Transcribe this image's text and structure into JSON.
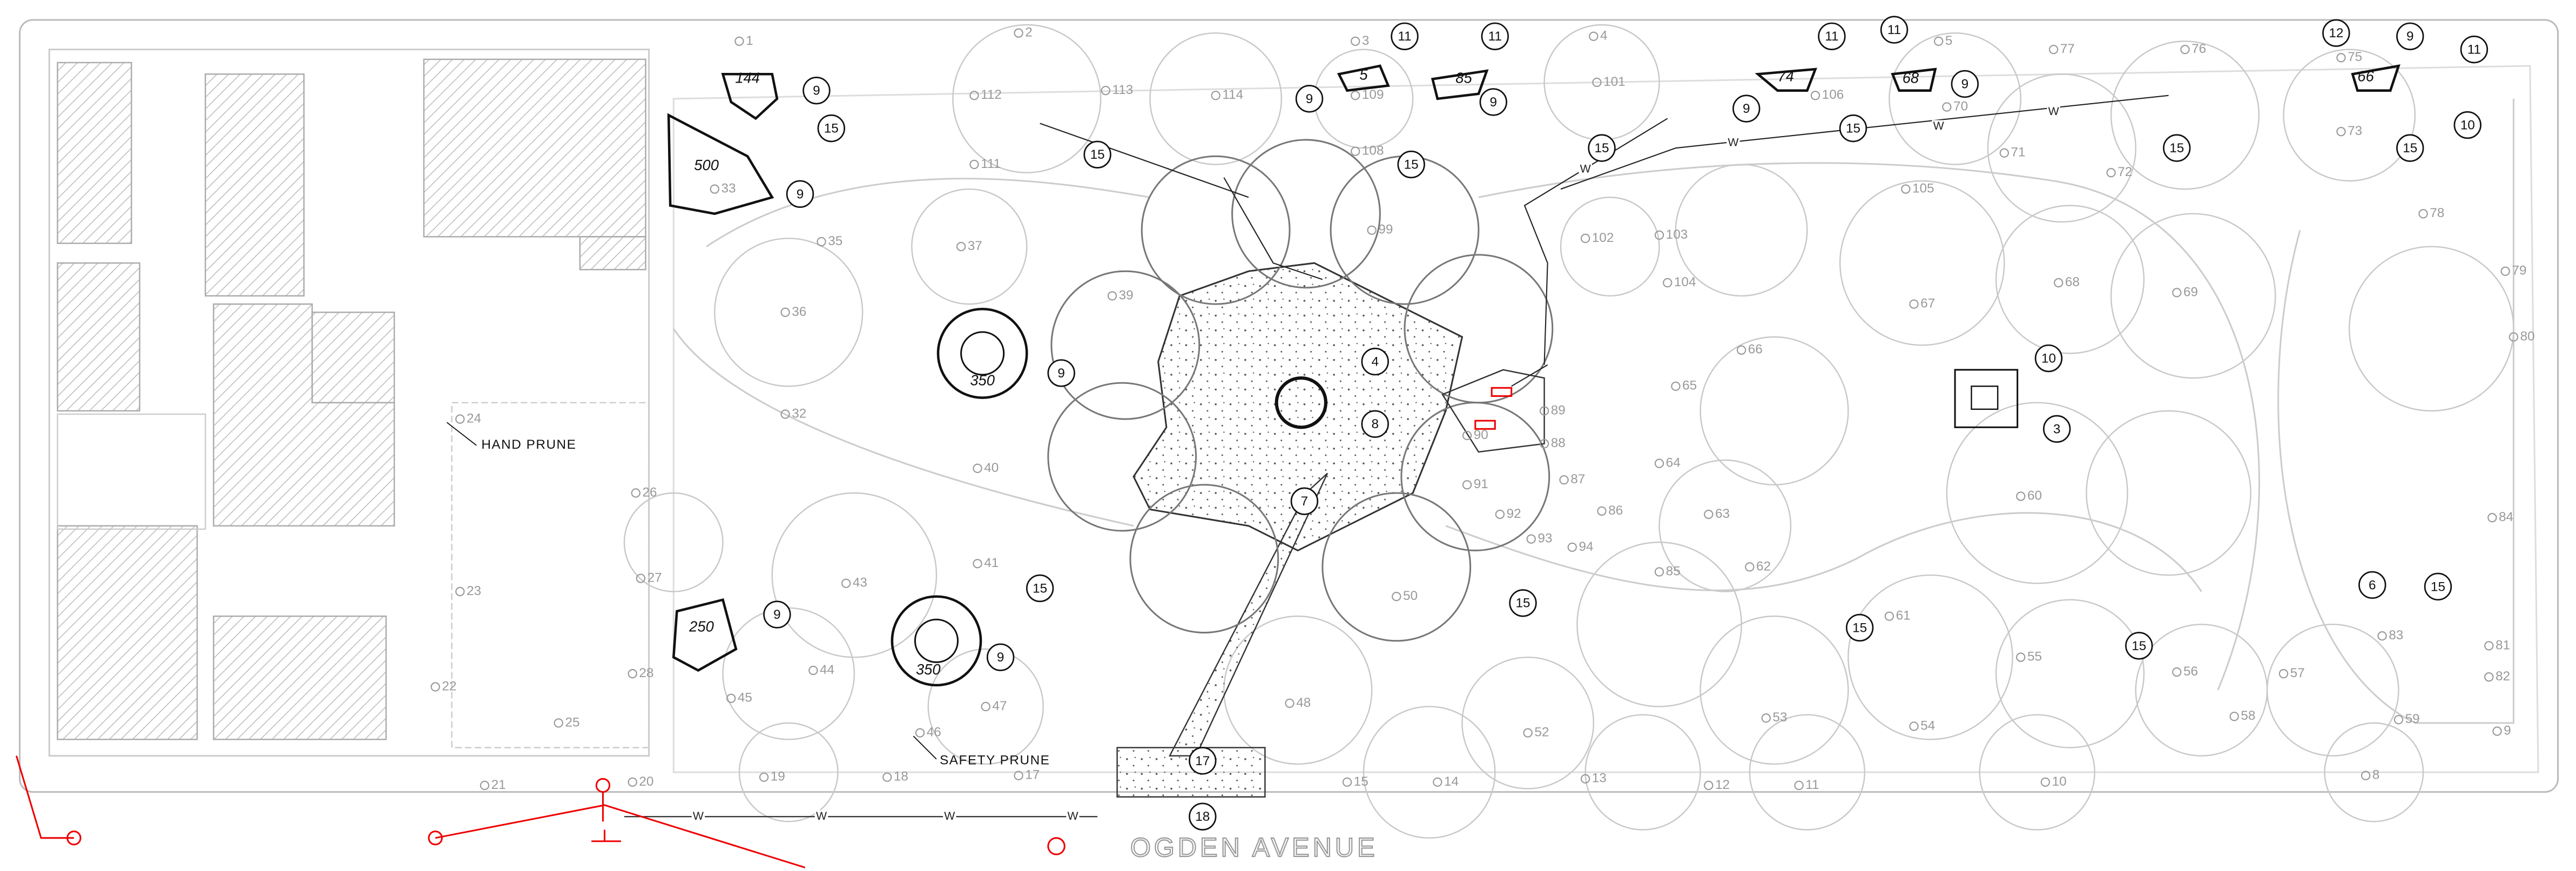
{
  "trees": [
    "1",
    "2",
    "3",
    "4",
    "5",
    "77",
    "76",
    "75",
    "112",
    "113",
    "114",
    "109",
    "106",
    "101",
    "70",
    "71",
    "72",
    "73",
    "111",
    "108",
    "105",
    "78",
    "79",
    "80",
    "33",
    "35",
    "37",
    "36",
    "39",
    "99",
    "102",
    "103",
    "104",
    "67",
    "68",
    "69",
    "66",
    "65",
    "32",
    "40",
    "89",
    "90",
    "88",
    "64",
    "87",
    "91",
    "60",
    "86",
    "92",
    "63",
    "84",
    "93",
    "94",
    "41",
    "85",
    "62",
    "43",
    "50",
    "61",
    "83",
    "81",
    "55",
    "44",
    "56",
    "57",
    "82",
    "45",
    "48",
    "47",
    "53",
    "58",
    "54",
    "59",
    "9",
    "52",
    "46",
    "8",
    "10",
    "11",
    "12",
    "13",
    "14",
    "15",
    "17",
    "18",
    "19",
    "20",
    "21",
    "22",
    "23",
    "24",
    "25",
    "27",
    "28",
    "26"
  ],
  "callouts": [
    "9",
    "15",
    "9",
    "9",
    "9",
    "9",
    "15",
    "15",
    "15",
    "15",
    "15",
    "15",
    "15",
    "15",
    "15",
    "15",
    "15",
    "6",
    "10",
    "10",
    "3",
    "4",
    "8",
    "7",
    "17",
    "18",
    "11",
    "11",
    "11",
    "11",
    "11",
    "9",
    "12",
    "9",
    "9",
    "9",
    "9"
  ],
  "areas": [
    "144",
    "500",
    "350",
    "250",
    "350",
    "5",
    "85",
    "74",
    "68",
    "66"
  ],
  "notes": {
    "hand_prune": "HAND PRUNE",
    "safety_prune": "SAFETY PRUNE"
  },
  "street": "OGDEN AVENUE",
  "water_line_labels": [
    "W",
    "W",
    "W",
    "W",
    "W",
    "W",
    "W",
    "W"
  ]
}
